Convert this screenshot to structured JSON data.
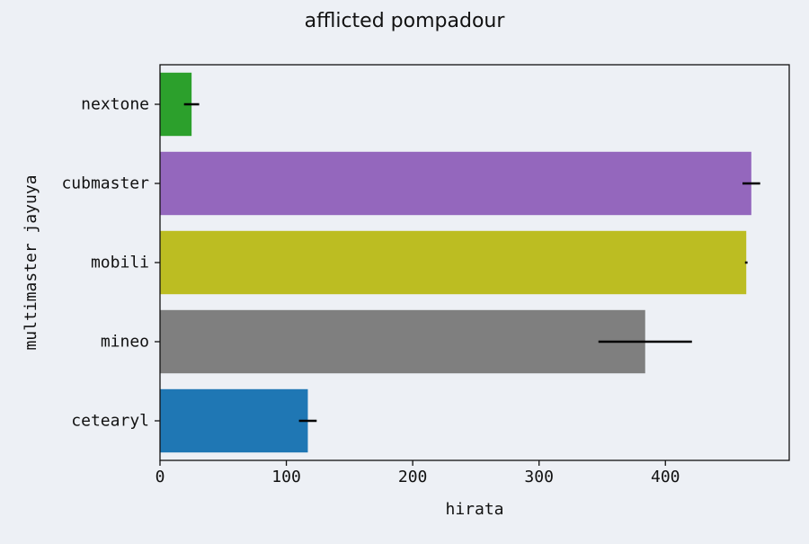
{
  "chart_data": {
    "type": "bar",
    "orientation": "horizontal",
    "title": "afflicted pompadour",
    "xlabel": "hirata",
    "ylabel": "multimaster jayuya",
    "xlim": [
      0,
      498
    ],
    "x_ticks": [
      0,
      100,
      200,
      300,
      400
    ],
    "grid": false,
    "categories": [
      "cetearyl",
      "mineo",
      "mobili",
      "cubmaster",
      "nextone"
    ],
    "values": [
      117,
      384,
      464,
      468,
      25
    ],
    "errors": [
      7,
      37,
      1,
      7,
      6
    ],
    "colors": [
      "#1f77b4",
      "#7f7f7f",
      "#bcbd22",
      "#9467bd",
      "#2ca02c"
    ],
    "error_color": "#000000"
  }
}
